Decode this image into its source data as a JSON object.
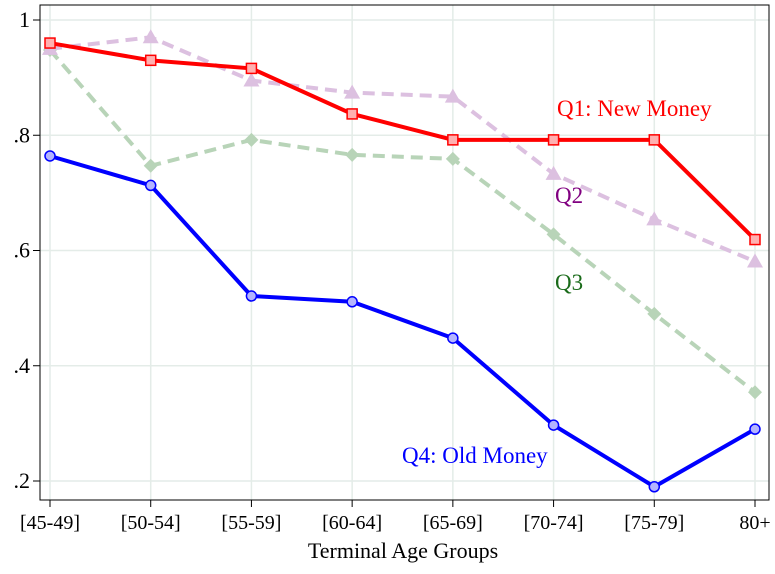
{
  "chart_data": {
    "type": "line",
    "title": "",
    "xlabel": "Terminal Age Groups",
    "ylabel": "",
    "categories": [
      "[45-49]",
      "[50-54]",
      "[55-59]",
      "[60-64]",
      "[65-69]",
      "[70-74]",
      "[75-79]",
      "80+"
    ],
    "ylim": [
      0.18,
      1.01
    ],
    "yticks": [
      0.2,
      0.4,
      0.6,
      0.8,
      1.0
    ],
    "ytick_labels": [
      ".2",
      ".4",
      ".6",
      ".8",
      "1"
    ],
    "grid": true,
    "series": [
      {
        "name": "Q1: New Money",
        "color": "#ff0000",
        "marker_fill": "#ffb0b0",
        "marker": "square",
        "dashed": false,
        "values": [
          0.96,
          0.93,
          0.916,
          0.837,
          0.792,
          0.792,
          0.792,
          0.619
        ]
      },
      {
        "name": "Q2",
        "color": "#dcc0e0",
        "label_color": "#800080",
        "marker_fill": "#dcc0e0",
        "marker": "triangle",
        "dashed": true,
        "values": [
          0.95,
          0.97,
          0.895,
          0.874,
          0.867,
          0.733,
          0.654,
          0.581
        ]
      },
      {
        "name": "Q3",
        "color": "#b8d4b8",
        "label_color": "#1a6b1a",
        "marker_fill": "#b8d4b8",
        "marker": "diamond",
        "dashed": true,
        "values": [
          0.948,
          0.747,
          0.792,
          0.766,
          0.759,
          0.628,
          0.49,
          0.354
        ]
      },
      {
        "name": "Q4: Old Money",
        "color": "#0000ff",
        "marker_fill": "#b4b4ff",
        "marker": "circle",
        "dashed": false,
        "values": [
          0.764,
          0.713,
          0.521,
          0.511,
          0.448,
          0.297,
          0.19,
          0.29
        ]
      }
    ]
  }
}
